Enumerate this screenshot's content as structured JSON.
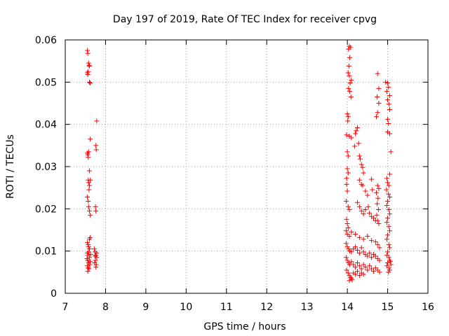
{
  "chart_data": {
    "type": "scatter",
    "title": "Day 197 of 2019, Rate Of TEC Index for receiver cpvg",
    "xlabel": "GPS time / hours",
    "ylabel": "ROTI / TECUs",
    "xlim": [
      7,
      16
    ],
    "ylim": [
      0,
      0.06
    ],
    "x_ticks": [
      7,
      8,
      9,
      10,
      11,
      12,
      13,
      14,
      15,
      16
    ],
    "x_tick_labels": [
      "7",
      "8",
      "9",
      "10",
      "11",
      "12",
      "13",
      "14",
      "15",
      "16"
    ],
    "y_ticks": [
      0,
      0.01,
      0.02,
      0.03,
      0.04,
      0.05,
      0.06
    ],
    "y_tick_labels": [
      "0",
      "0.01",
      "0.02",
      "0.03",
      "0.04",
      "0.05",
      "0.06"
    ],
    "grid": true,
    "marker": "+",
    "marker_color": "#ff0000",
    "series": [
      {
        "name": "ROTI",
        "points": [
          [
            7.55,
            0.0575
          ],
          [
            7.56,
            0.0568
          ],
          [
            7.58,
            0.0545
          ],
          [
            7.59,
            0.054
          ],
          [
            7.6,
            0.0538
          ],
          [
            7.55,
            0.0522
          ],
          [
            7.56,
            0.0518
          ],
          [
            7.57,
            0.0525
          ],
          [
            7.6,
            0.05
          ],
          [
            7.62,
            0.0498
          ],
          [
            7.78,
            0.0408
          ],
          [
            7.62,
            0.0365
          ],
          [
            7.76,
            0.035
          ],
          [
            7.77,
            0.034
          ],
          [
            7.55,
            0.0332
          ],
          [
            7.56,
            0.0328
          ],
          [
            7.57,
            0.0322
          ],
          [
            7.58,
            0.0335
          ],
          [
            7.6,
            0.029
          ],
          [
            7.57,
            0.0268
          ],
          [
            7.58,
            0.0262
          ],
          [
            7.6,
            0.0255
          ],
          [
            7.62,
            0.0268
          ],
          [
            7.59,
            0.0245
          ],
          [
            7.55,
            0.0228
          ],
          [
            7.57,
            0.0218
          ],
          [
            7.58,
            0.0205
          ],
          [
            7.6,
            0.0195
          ],
          [
            7.62,
            0.0185
          ],
          [
            7.75,
            0.0205
          ],
          [
            7.76,
            0.0195
          ],
          [
            7.55,
            0.012
          ],
          [
            7.57,
            0.0115
          ],
          [
            7.6,
            0.0128
          ],
          [
            7.62,
            0.0132
          ],
          [
            7.58,
            0.011
          ],
          [
            7.55,
            0.0095
          ],
          [
            7.56,
            0.009
          ],
          [
            7.58,
            0.0098
          ],
          [
            7.6,
            0.0105
          ],
          [
            7.63,
            0.0092
          ],
          [
            7.54,
            0.0082
          ],
          [
            7.56,
            0.0078
          ],
          [
            7.58,
            0.0072
          ],
          [
            7.6,
            0.0085
          ],
          [
            7.62,
            0.0075
          ],
          [
            7.55,
            0.0065
          ],
          [
            7.57,
            0.006
          ],
          [
            7.59,
            0.0058
          ],
          [
            7.61,
            0.0068
          ],
          [
            7.56,
            0.0052
          ],
          [
            7.72,
            0.0105
          ],
          [
            7.74,
            0.0098
          ],
          [
            7.76,
            0.009
          ],
          [
            7.78,
            0.0085
          ],
          [
            7.75,
            0.0078
          ],
          [
            7.73,
            0.0072
          ],
          [
            7.77,
            0.0068
          ],
          [
            7.76,
            0.0062
          ],
          [
            7.74,
            0.0088
          ],
          [
            7.78,
            0.0095
          ],
          [
            14.05,
            0.0585
          ],
          [
            14.08,
            0.0582
          ],
          [
            14.03,
            0.0578
          ],
          [
            14.06,
            0.0558
          ],
          [
            14.04,
            0.0538
          ],
          [
            14.02,
            0.0522
          ],
          [
            14.05,
            0.0515
          ],
          [
            14.1,
            0.0505
          ],
          [
            14.07,
            0.0498
          ],
          [
            14.03,
            0.0485
          ],
          [
            14.06,
            0.0478
          ],
          [
            14.09,
            0.0465
          ],
          [
            14.0,
            0.0425
          ],
          [
            14.02,
            0.0418
          ],
          [
            14.01,
            0.0408
          ],
          [
            13.98,
            0.0375
          ],
          [
            14.05,
            0.0372
          ],
          [
            14.1,
            0.0368
          ],
          [
            14.2,
            0.0378
          ],
          [
            14.25,
            0.0392
          ],
          [
            14.22,
            0.0385
          ],
          [
            14.28,
            0.0355
          ],
          [
            14.18,
            0.0348
          ],
          [
            14.0,
            0.0335
          ],
          [
            14.02,
            0.0325
          ],
          [
            14.3,
            0.0325
          ],
          [
            14.32,
            0.0318
          ],
          [
            14.35,
            0.0305
          ],
          [
            14.38,
            0.0298
          ],
          [
            14.4,
            0.0285
          ],
          [
            14.0,
            0.0295
          ],
          [
            14.02,
            0.0285
          ],
          [
            13.98,
            0.0272
          ],
          [
            14.3,
            0.0268
          ],
          [
            14.35,
            0.0258
          ],
          [
            14.38,
            0.0255
          ],
          [
            14.6,
            0.027
          ],
          [
            14.62,
            0.0245
          ],
          [
            14.45,
            0.0242
          ],
          [
            14.5,
            0.0232
          ],
          [
            13.98,
            0.0258
          ],
          [
            14.0,
            0.0242
          ],
          [
            13.97,
            0.0218
          ],
          [
            14.02,
            0.0205
          ],
          [
            14.05,
            0.0198
          ],
          [
            14.25,
            0.0215
          ],
          [
            14.3,
            0.0205
          ],
          [
            14.35,
            0.0195
          ],
          [
            14.4,
            0.0188
          ],
          [
            14.45,
            0.0198
          ],
          [
            14.52,
            0.0205
          ],
          [
            14.55,
            0.019
          ],
          [
            14.6,
            0.0182
          ],
          [
            14.65,
            0.0178
          ],
          [
            14.7,
            0.0172
          ],
          [
            13.98,
            0.0175
          ],
          [
            14.0,
            0.0165
          ],
          [
            14.02,
            0.0155
          ],
          [
            13.97,
            0.0148
          ],
          [
            14.0,
            0.014
          ],
          [
            14.05,
            0.0135
          ],
          [
            14.1,
            0.0145
          ],
          [
            14.2,
            0.014
          ],
          [
            14.3,
            0.0132
          ],
          [
            14.4,
            0.0128
          ],
          [
            14.5,
            0.0135
          ],
          [
            14.6,
            0.0125
          ],
          [
            14.7,
            0.0122
          ],
          [
            14.75,
            0.0115
          ],
          [
            14.8,
            0.0108
          ],
          [
            13.97,
            0.0118
          ],
          [
            14.0,
            0.011
          ],
          [
            14.03,
            0.0105
          ],
          [
            14.06,
            0.01
          ],
          [
            14.1,
            0.0098
          ],
          [
            14.15,
            0.0105
          ],
          [
            14.2,
            0.011
          ],
          [
            14.25,
            0.0102
          ],
          [
            14.3,
            0.0095
          ],
          [
            14.35,
            0.0108
          ],
          [
            14.4,
            0.0098
          ],
          [
            14.45,
            0.0092
          ],
          [
            14.5,
            0.0088
          ],
          [
            14.55,
            0.0095
          ],
          [
            14.6,
            0.0085
          ],
          [
            14.65,
            0.0092
          ],
          [
            14.7,
            0.0088
          ],
          [
            14.75,
            0.0082
          ],
          [
            14.8,
            0.0078
          ],
          [
            13.97,
            0.0085
          ],
          [
            14.0,
            0.0078
          ],
          [
            14.03,
            0.0072
          ],
          [
            14.06,
            0.0068
          ],
          [
            14.1,
            0.0075
          ],
          [
            14.15,
            0.0068
          ],
          [
            14.2,
            0.0062
          ],
          [
            14.25,
            0.0072
          ],
          [
            14.3,
            0.0065
          ],
          [
            14.35,
            0.0058
          ],
          [
            14.4,
            0.0068
          ],
          [
            14.45,
            0.0062
          ],
          [
            14.5,
            0.0055
          ],
          [
            14.55,
            0.0065
          ],
          [
            14.6,
            0.0058
          ],
          [
            14.65,
            0.0052
          ],
          [
            14.7,
            0.006
          ],
          [
            14.75,
            0.0055
          ],
          [
            14.8,
            0.005
          ],
          [
            13.98,
            0.0055
          ],
          [
            14.02,
            0.0048
          ],
          [
            14.05,
            0.0042
          ],
          [
            14.08,
            0.0038
          ],
          [
            14.1,
            0.0035
          ],
          [
            14.15,
            0.0048
          ],
          [
            14.2,
            0.0045
          ],
          [
            14.25,
            0.0052
          ],
          [
            14.3,
            0.0042
          ],
          [
            14.35,
            0.0048
          ],
          [
            14.4,
            0.0045
          ],
          [
            14.05,
            0.003
          ],
          [
            14.12,
            0.0032
          ],
          [
            14.75,
            0.052
          ],
          [
            14.78,
            0.0485
          ],
          [
            14.74,
            0.0465
          ],
          [
            14.78,
            0.045
          ],
          [
            14.75,
            0.0428
          ],
          [
            14.72,
            0.0418
          ],
          [
            14.75,
            0.0255
          ],
          [
            14.78,
            0.0248
          ],
          [
            14.72,
            0.0238
          ],
          [
            14.76,
            0.0225
          ],
          [
            14.74,
            0.0212
          ],
          [
            14.77,
            0.0198
          ],
          [
            14.73,
            0.0185
          ],
          [
            14.75,
            0.0172
          ],
          [
            14.78,
            0.0165
          ],
          [
            14.95,
            0.05
          ],
          [
            15.0,
            0.0498
          ],
          [
            15.02,
            0.0488
          ],
          [
            14.98,
            0.0478
          ],
          [
            15.05,
            0.0468
          ],
          [
            15.0,
            0.0458
          ],
          [
            15.03,
            0.0448
          ],
          [
            15.05,
            0.0435
          ],
          [
            15.0,
            0.0412
          ],
          [
            15.02,
            0.0402
          ],
          [
            15.0,
            0.0382
          ],
          [
            15.05,
            0.0378
          ],
          [
            15.08,
            0.0335
          ],
          [
            15.05,
            0.0282
          ],
          [
            14.98,
            0.0272
          ],
          [
            15.0,
            0.0262
          ],
          [
            15.03,
            0.0255
          ],
          [
            14.97,
            0.0245
          ],
          [
            15.02,
            0.0235
          ],
          [
            15.05,
            0.0228
          ],
          [
            15.0,
            0.0218
          ],
          [
            14.98,
            0.0208
          ],
          [
            15.03,
            0.0198
          ],
          [
            15.05,
            0.0188
          ],
          [
            15.0,
            0.0178
          ],
          [
            14.98,
            0.0168
          ],
          [
            15.03,
            0.0158
          ],
          [
            15.05,
            0.0148
          ],
          [
            15.0,
            0.0138
          ],
          [
            14.98,
            0.0128
          ],
          [
            15.03,
            0.0115
          ],
          [
            15.05,
            0.0108
          ],
          [
            15.0,
            0.0098
          ],
          [
            14.98,
            0.009
          ],
          [
            15.03,
            0.0085
          ],
          [
            15.05,
            0.0078
          ],
          [
            15.0,
            0.0072
          ],
          [
            14.98,
            0.0065
          ],
          [
            15.03,
            0.006
          ],
          [
            15.05,
            0.0055
          ],
          [
            15.08,
            0.0068
          ],
          [
            15.07,
            0.0075
          ],
          [
            15.02,
            0.005
          ]
        ]
      }
    ]
  }
}
